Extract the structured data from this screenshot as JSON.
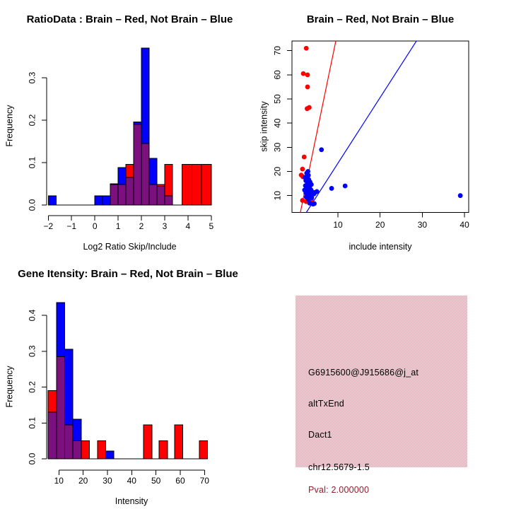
{
  "figure": {
    "background": "#ffffff"
  },
  "colors": {
    "red": "#ff0000",
    "blue": "#0000ff",
    "overlap": "#7b107e",
    "axis": "#000000",
    "info_bg": "#f5b7c3",
    "info_dot": "#d9cdd1",
    "pval": "#8f1d2c"
  },
  "chart_data": [
    {
      "id": "ratio_hist",
      "type": "bar",
      "subtype": "overlaid-histogram",
      "panel": "top-left",
      "title": "RatioData : Brain – Red, Not Brain – Blue",
      "xlabel": "Log2 Ratio Skip/Include",
      "ylabel": "Frequency",
      "series": [
        {
          "name": "Brain",
          "color": "red"
        },
        {
          "name": "Not Brain",
          "color": "blue"
        }
      ],
      "xlim": [
        -2.35,
        5.2
      ],
      "ylim": [
        0,
        0.38
      ],
      "xticks": [
        -2,
        -1,
        0,
        1,
        2,
        3,
        4,
        5
      ],
      "xtick_labels": [
        "−2",
        "−1",
        "0",
        "1",
        "2",
        "3",
        "4",
        "5"
      ],
      "yticks": [
        0,
        0.1,
        0.2,
        0.3
      ],
      "ytick_labels": [
        "0.0",
        "0.1",
        "0.2",
        "0.3"
      ],
      "grid": false,
      "legend": "none",
      "baseline_range": [
        -2,
        5
      ],
      "bins": [
        {
          "x0": -2,
          "x1": -1.667,
          "red": 0,
          "blue": 0.022
        },
        {
          "x0": 0,
          "x1": 0.333,
          "red": 0,
          "blue": 0.022
        },
        {
          "x0": 0.333,
          "x1": 0.667,
          "red": 0,
          "blue": 0.022
        },
        {
          "x0": 0.667,
          "x1": 1,
          "red": 0.05,
          "blue": 0.048
        },
        {
          "x0": 1,
          "x1": 1.333,
          "red": 0.048,
          "blue": 0.088
        },
        {
          "x0": 1.333,
          "x1": 1.667,
          "red": 0.096,
          "blue": 0.065
        },
        {
          "x0": 1.667,
          "x1": 2,
          "red": 0.19,
          "blue": 0.196
        },
        {
          "x0": 2,
          "x1": 2.333,
          "red": 0.145,
          "blue": 0.37
        },
        {
          "x0": 2.333,
          "x1": 2.667,
          "red": 0.048,
          "blue": 0.11
        },
        {
          "x0": 2.667,
          "x1": 3,
          "red": 0.048,
          "blue": 0.044
        },
        {
          "x0": 3,
          "x1": 3.333,
          "red": 0.096,
          "blue": 0.022
        },
        {
          "x0": 3.75,
          "x1": 4.167,
          "red": 0.096,
          "blue": 0
        },
        {
          "x0": 4.167,
          "x1": 4.583,
          "red": 0.096,
          "blue": 0
        },
        {
          "x0": 4.583,
          "x1": 5,
          "red": 0.096,
          "blue": 0
        }
      ]
    },
    {
      "id": "scatter",
      "type": "scatter",
      "panel": "top-right",
      "title": "Brain – Red, Not Brain – Blue",
      "xlabel": "include intensity",
      "ylabel": "skip intensity",
      "xlim": [
        -0.55,
        41
      ],
      "ylim": [
        3,
        74.5
      ],
      "xticks": [
        10,
        20,
        30,
        40
      ],
      "yticks": [
        10,
        20,
        30,
        40,
        50,
        60,
        70
      ],
      "grid": false,
      "legend": "none",
      "red_points": [
        [
          2.5,
          71
        ],
        [
          1.8,
          60.5
        ],
        [
          2.8,
          60
        ],
        [
          2.8,
          55
        ],
        [
          2.7,
          46
        ],
        [
          3.2,
          46.5
        ],
        [
          2.0,
          26
        ],
        [
          1.6,
          21
        ],
        [
          1.3,
          18.5
        ],
        [
          1.7,
          17.8
        ],
        [
          1.6,
          8
        ],
        [
          2.5,
          7.5
        ],
        [
          3.8,
          7.8
        ]
      ],
      "blue_points": [
        [
          2.2,
          17.5
        ],
        [
          2.9,
          20
        ],
        [
          2.6,
          19.3
        ],
        [
          3.0,
          18.4
        ],
        [
          2.4,
          16.2
        ],
        [
          3.1,
          16.6
        ],
        [
          2.8,
          15.2
        ],
        [
          3.4,
          15.6
        ],
        [
          2.3,
          14.1
        ],
        [
          3.0,
          14.3
        ],
        [
          3.7,
          14.6
        ],
        [
          2.6,
          13.1
        ],
        [
          3.3,
          13.3
        ],
        [
          2.9,
          12.1
        ],
        [
          3.6,
          12.4
        ],
        [
          2.4,
          11.1
        ],
        [
          3.1,
          11.3
        ],
        [
          3.9,
          11.6
        ],
        [
          2.7,
          10.2
        ],
        [
          3.4,
          10.1
        ],
        [
          2.5,
          9.4
        ],
        [
          3.8,
          9.1
        ],
        [
          3.0,
          8.5
        ],
        [
          4.3,
          10.7
        ],
        [
          4.6,
          11.3
        ],
        [
          3.3,
          6.9
        ],
        [
          4.1,
          6.5
        ],
        [
          5.0,
          11.7
        ],
        [
          2.1,
          12.3
        ],
        [
          4.4,
          6.7
        ],
        [
          6.1,
          29
        ],
        [
          8.5,
          13
        ],
        [
          11.7,
          14
        ],
        [
          39,
          10
        ]
      ],
      "red_line": {
        "x1": 1.1,
        "y1": 3,
        "x2": 9.5,
        "y2": 74
      },
      "blue_line": {
        "x1": 2.5,
        "y1": 3,
        "x2": 28.6,
        "y2": 74
      }
    },
    {
      "id": "gene_hist",
      "type": "bar",
      "subtype": "overlaid-histogram",
      "panel": "bottom-left",
      "title": "Gene Itensity: Brain – Red, Not Brain – Blue",
      "xlabel": "Intensity",
      "ylabel": "Frequency",
      "series": [
        {
          "name": "Brain",
          "color": "red"
        },
        {
          "name": "Not Brain",
          "color": "blue"
        }
      ],
      "xlim": [
        5,
        72
      ],
      "ylim": [
        0,
        0.45
      ],
      "xticks": [
        10,
        20,
        30,
        40,
        50,
        60,
        70
      ],
      "xtick_labels": [
        "10",
        "20",
        "30",
        "40",
        "50",
        "60",
        "70"
      ],
      "yticks": [
        0,
        0.1,
        0.2,
        0.3,
        0.4
      ],
      "ytick_labels": [
        "0.0",
        "0.1",
        "0.2",
        "0.3",
        "0.4"
      ],
      "grid": false,
      "legend": "none",
      "baseline_range": [
        5.6,
        71.3
      ],
      "bins": [
        {
          "x0": 5.6,
          "x1": 9,
          "red": 0.19,
          "blue": 0.13
        },
        {
          "x0": 9,
          "x1": 12.4,
          "red": 0.285,
          "blue": 0.435
        },
        {
          "x0": 12.4,
          "x1": 15.8,
          "red": 0.095,
          "blue": 0.305
        },
        {
          "x0": 15.8,
          "x1": 19.2,
          "red": 0.05,
          "blue": 0.11
        },
        {
          "x0": 19.2,
          "x1": 22.6,
          "red": 0.05,
          "blue": 0
        },
        {
          "x0": 25.9,
          "x1": 29.3,
          "red": 0.05,
          "blue": 0
        },
        {
          "x0": 29.3,
          "x1": 32.7,
          "red": 0,
          "blue": 0.022
        },
        {
          "x0": 44.9,
          "x1": 48.3,
          "red": 0.095,
          "blue": 0
        },
        {
          "x0": 51.3,
          "x1": 54.7,
          "red": 0.05,
          "blue": 0
        },
        {
          "x0": 57.7,
          "x1": 61.1,
          "red": 0.095,
          "blue": 0
        },
        {
          "x0": 67.9,
          "x1": 71.3,
          "red": 0.05,
          "blue": 0
        }
      ]
    }
  ],
  "info_panel": {
    "panel": "bottom-right",
    "lines": [
      {
        "id": "probe-id",
        "text": "G6915600@J915686@j_at",
        "color": "#000000"
      },
      {
        "id": "splice-type",
        "text": "altTxEnd",
        "color": "#000000"
      },
      {
        "id": "gene-name",
        "text": "Dact1",
        "color": "#000000"
      },
      {
        "id": "location",
        "text": "chr12.5679-1.5",
        "color": "#000000"
      },
      {
        "id": "pvalue",
        "text": "Pval: 2.000000",
        "color": "#8f1d2c"
      }
    ]
  }
}
